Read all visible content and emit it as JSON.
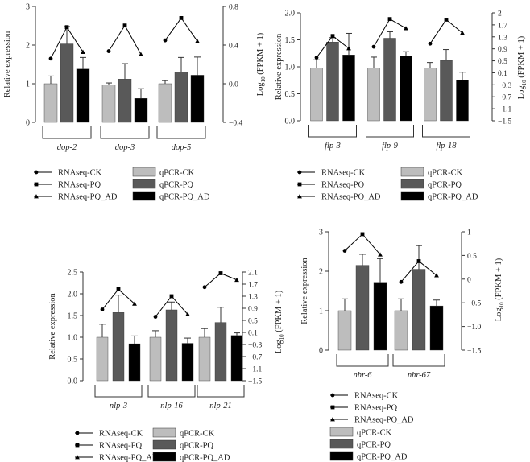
{
  "colors": {
    "ck": "#bdbdbd",
    "pq": "#595959",
    "ad": "#000000",
    "axis": "#333333",
    "line": "#000000"
  },
  "legend": {
    "rnaseq_ck": "RNAseq-CK",
    "rnaseq_pq": "RNAseq-PQ",
    "rnaseq_ad": "RNAseq-PQ_AD",
    "qpcr_ck": "qPCR-CK",
    "qpcr_pq": "qPCR-PQ",
    "qpcr_ad": "qPCR-PQ_AD"
  },
  "chart_data": [
    {
      "type": "bar",
      "ylabel": "Relative expression",
      "y2label": "Log10 (FPKM + 1)",
      "ylim": [
        0,
        3
      ],
      "yticks": [
        "0",
        "1",
        "2",
        "3"
      ],
      "y2lim": [
        -0.6,
        0.8
      ],
      "y2ticks": [
        "0.8",
        "0.4",
        "0.0",
        "−0.4"
      ],
      "categories": [
        "dop-2",
        "dop-3",
        "dop-5"
      ],
      "series": [
        {
          "name": "qPCR-CK",
          "values": [
            1.0,
            0.97,
            1.0
          ],
          "errors": [
            0.2,
            0.05,
            0.08
          ]
        },
        {
          "name": "qPCR-PQ",
          "values": [
            2.03,
            1.12,
            1.3
          ],
          "errors": [
            0.45,
            0.4,
            0.38
          ]
        },
        {
          "name": "qPCR-PQ_AD",
          "values": [
            1.38,
            0.62,
            1.22
          ],
          "errors": [
            0.3,
            0.25,
            0.47
          ]
        }
      ],
      "rnaseq": [
        {
          "name": "RNAseq-CK",
          "values": [
            0.17,
            0.26,
            0.39
          ]
        },
        {
          "name": "RNAseq-PQ",
          "values": [
            0.55,
            0.57,
            0.66
          ]
        },
        {
          "name": "RNAseq-PQ_AD",
          "values": [
            0.25,
            0.22,
            0.38
          ]
        }
      ]
    },
    {
      "type": "bar",
      "ylabel": "Relative expression",
      "y2label": "Log10 (FPKM + 1)",
      "ylim": [
        0,
        2
      ],
      "yticks": [
        "0.0",
        "0.5",
        "1.0",
        "1.5",
        "2.0"
      ],
      "y2lim": [
        -1.5,
        2
      ],
      "y2ticks": [
        "2",
        "1.7",
        "1.3",
        "0.9",
        "0.5",
        "0.1",
        "−0.3",
        "−0.7",
        "−1.1",
        "−1.5"
      ],
      "categories": [
        "flp-3",
        "flp-9",
        "flp-18"
      ],
      "series": [
        {
          "name": "qPCR-CK",
          "values": [
            0.98,
            0.98,
            0.98
          ],
          "errors": [
            0.15,
            0.2,
            0.1
          ]
        },
        {
          "name": "qPCR-PQ",
          "values": [
            1.46,
            1.53,
            1.12
          ],
          "errors": [
            0.08,
            0.12,
            0.2
          ]
        },
        {
          "name": "qPCR-PQ_AD",
          "values": [
            1.22,
            1.2,
            0.75
          ],
          "errors": [
            0.4,
            0.08,
            0.15
          ]
        }
      ],
      "rnaseq": [
        {
          "name": "RNAseq-CK",
          "values": [
            0.55,
            0.9,
            1.0
          ]
        },
        {
          "name": "RNAseq-PQ",
          "values": [
            1.25,
            1.8,
            1.78
          ]
        },
        {
          "name": "RNAseq-PQ_AD",
          "values": [
            0.85,
            1.5,
            1.35
          ]
        }
      ]
    },
    {
      "type": "bar",
      "ylabel": "Relative expression",
      "y2label": "Log10 (FPKM + 1)",
      "ylim": [
        0,
        2.5
      ],
      "yticks": [
        "0.0",
        "0.5",
        "1.0",
        "1.5",
        "2.0",
        "2.5"
      ],
      "y2lim": [
        -1.5,
        2.1
      ],
      "y2ticks": [
        "2.1",
        "1.7",
        "1.3",
        "0.9",
        "0.5",
        "0.1",
        "−0.3",
        "−0.7",
        "−1.1",
        "−1.5"
      ],
      "categories": [
        "nlp-3",
        "nlp-16",
        "nlp-21"
      ],
      "series": [
        {
          "name": "qPCR-CK",
          "values": [
            1.0,
            1.0,
            1.0
          ],
          "errors": [
            0.3,
            0.15,
            0.2
          ]
        },
        {
          "name": "qPCR-PQ",
          "values": [
            1.57,
            1.63,
            1.34
          ],
          "errors": [
            0.4,
            0.18,
            0.35
          ]
        },
        {
          "name": "qPCR-PQ_AD",
          "values": [
            0.85,
            0.86,
            1.04
          ],
          "errors": [
            0.18,
            0.12,
            0.06
          ]
        }
      ],
      "rnaseq": [
        {
          "name": "RNAseq-CK",
          "values": [
            0.86,
            0.62,
            1.6
          ]
        },
        {
          "name": "RNAseq-PQ",
          "values": [
            1.53,
            1.3,
            2.06
          ]
        },
        {
          "name": "RNAseq-PQ_AD",
          "values": [
            1.05,
            0.7,
            1.84
          ]
        }
      ]
    },
    {
      "type": "bar",
      "ylabel": "Relative expression",
      "y2label": "Log10 (FPKM + 1)",
      "ylim": [
        0,
        3
      ],
      "yticks": [
        "0",
        "1",
        "2",
        "3"
      ],
      "y2lim": [
        -1.5,
        1
      ],
      "y2ticks": [
        "1",
        "0.5",
        "0",
        "−0.5",
        "−1.0",
        "−1.5"
      ],
      "categories": [
        "nhr-6",
        "nhr-67"
      ],
      "series": [
        {
          "name": "qPCR-CK",
          "values": [
            1.0,
            1.0
          ],
          "errors": [
            0.3,
            0.3
          ]
        },
        {
          "name": "qPCR-PQ",
          "values": [
            2.15,
            2.05
          ],
          "errors": [
            0.28,
            0.6
          ]
        },
        {
          "name": "qPCR-PQ_AD",
          "values": [
            1.72,
            1.12
          ],
          "errors": [
            0.6,
            0.15
          ]
        }
      ],
      "rnaseq": [
        {
          "name": "RNAseq-CK",
          "values": [
            0.6,
            -0.06
          ]
        },
        {
          "name": "RNAseq-PQ",
          "values": [
            0.95,
            0.38
          ]
        },
        {
          "name": "RNAseq-PQ_AD",
          "values": [
            0.52,
            0.08
          ]
        }
      ]
    }
  ]
}
